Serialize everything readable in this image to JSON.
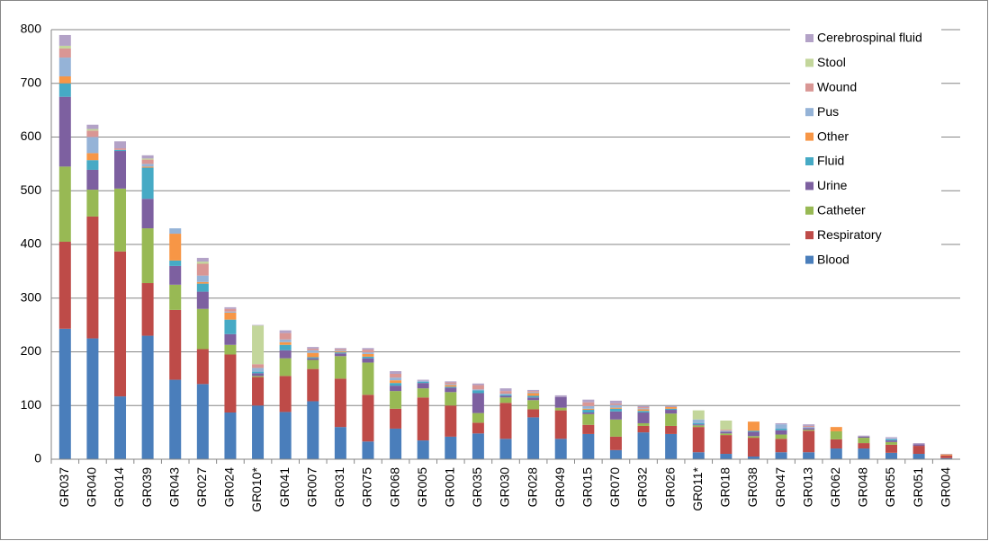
{
  "chart_data": {
    "type": "stacked-bar",
    "categories": [
      "GR037",
      "GR040",
      "GR014",
      "GR039",
      "GR043",
      "GR027",
      "GR024",
      "GR010*",
      "GR041",
      "GR007",
      "GR031",
      "GR075",
      "GR068",
      "GR005",
      "GR001",
      "GR035",
      "GR030",
      "GR028",
      "GR049",
      "GR015",
      "GR070",
      "GR032",
      "GR026",
      "GR011*",
      "GR018",
      "GR038",
      "GR047",
      "GR013",
      "GR062",
      "GR048",
      "GR055",
      "GR051",
      "GR004"
    ],
    "series": [
      {
        "name": "Blood",
        "color": "#4a7ebb",
        "values": [
          243,
          225,
          117,
          230,
          148,
          140,
          87,
          100,
          88,
          108,
          60,
          33,
          57,
          35,
          42,
          48,
          38,
          78,
          38,
          47,
          17,
          50,
          47,
          13,
          10,
          5,
          13,
          13,
          20,
          20,
          12,
          10,
          2
        ]
      },
      {
        "name": "Respiratory",
        "color": "#be4b48",
        "values": [
          162,
          227,
          270,
          98,
          130,
          65,
          108,
          53,
          67,
          60,
          90,
          87,
          37,
          80,
          58,
          20,
          67,
          15,
          53,
          17,
          25,
          12,
          15,
          47,
          35,
          35,
          25,
          40,
          17,
          10,
          15,
          15,
          5
        ]
      },
      {
        "name": "Catheter",
        "color": "#98b954",
        "values": [
          140,
          50,
          117,
          102,
          47,
          75,
          18,
          2,
          33,
          17,
          42,
          60,
          33,
          17,
          25,
          18,
          10,
          17,
          5,
          20,
          32,
          5,
          23,
          3,
          3,
          3,
          8,
          2,
          15,
          10,
          5,
          0,
          0
        ]
      },
      {
        "name": "Urine",
        "color": "#7d60a0",
        "values": [
          130,
          37,
          70,
          55,
          35,
          32,
          20,
          5,
          15,
          3,
          5,
          8,
          10,
          10,
          8,
          37,
          3,
          5,
          20,
          3,
          15,
          20,
          7,
          2,
          3,
          8,
          8,
          3,
          0,
          2,
          3,
          3,
          0
        ]
      },
      {
        "name": "Fluid",
        "color": "#46aac5",
        "values": [
          25,
          18,
          2,
          58,
          10,
          15,
          27,
          3,
          10,
          2,
          2,
          3,
          5,
          2,
          2,
          5,
          2,
          3,
          0,
          5,
          5,
          3,
          2,
          2,
          0,
          2,
          3,
          0,
          0,
          0,
          2,
          0,
          0
        ]
      },
      {
        "name": "Other",
        "color": "#f79646",
        "values": [
          13,
          13,
          0,
          2,
          50,
          3,
          13,
          0,
          5,
          8,
          2,
          5,
          5,
          0,
          3,
          0,
          0,
          5,
          0,
          2,
          2,
          3,
          3,
          0,
          0,
          17,
          0,
          0,
          8,
          0,
          0,
          0,
          2
        ]
      },
      {
        "name": "Pus",
        "color": "#95b3d7",
        "values": [
          35,
          30,
          0,
          5,
          10,
          12,
          2,
          7,
          5,
          5,
          2,
          3,
          5,
          2,
          2,
          2,
          2,
          2,
          0,
          5,
          5,
          2,
          0,
          7,
          2,
          0,
          8,
          2,
          0,
          0,
          2,
          0,
          0
        ]
      },
      {
        "name": "Wound",
        "color": "#d99694",
        "values": [
          17,
          12,
          3,
          8,
          0,
          22,
          5,
          7,
          12,
          3,
          2,
          5,
          7,
          0,
          3,
          8,
          5,
          2,
          0,
          7,
          3,
          2,
          0,
          0,
          2,
          0,
          0,
          2,
          0,
          0,
          0,
          0,
          0
        ]
      },
      {
        "name": "Stool",
        "color": "#c3d69b",
        "values": [
          5,
          3,
          0,
          2,
          0,
          4,
          0,
          72,
          0,
          0,
          0,
          0,
          0,
          0,
          0,
          0,
          0,
          0,
          0,
          0,
          0,
          0,
          0,
          17,
          17,
          0,
          0,
          0,
          0,
          0,
          0,
          0,
          0
        ]
      },
      {
        "name": "Cerebrospinal fluid",
        "color": "#b3a2c7",
        "values": [
          20,
          8,
          13,
          6,
          0,
          7,
          3,
          1,
          5,
          3,
          2,
          3,
          5,
          2,
          2,
          3,
          5,
          2,
          3,
          5,
          5,
          2,
          2,
          0,
          0,
          0,
          2,
          3,
          0,
          2,
          2,
          2,
          1
        ]
      }
    ],
    "ylim": [
      0,
      800
    ],
    "yticks": [
      0,
      100,
      200,
      300,
      400,
      500,
      600,
      700,
      800
    ],
    "grid": true,
    "legend": "top-right"
  }
}
